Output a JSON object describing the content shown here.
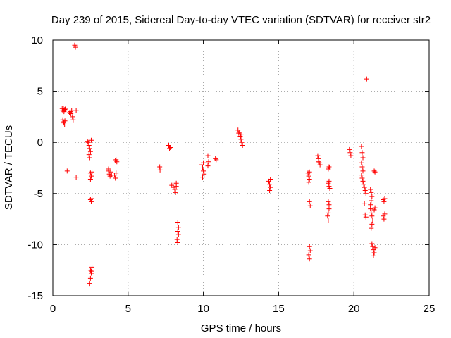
{
  "chart_data": {
    "type": "scatter",
    "title": "Day 239 of 2015, Sidereal Day-to-day VTEC variation (SDTVAR) for receiver str2",
    "xlabel": "GPS time / hours",
    "ylabel": "SDTVAR / TECUs",
    "xlim": [
      0,
      25
    ],
    "ylim": [
      -15,
      10
    ],
    "xticks": [
      0,
      5,
      10,
      15,
      20,
      25
    ],
    "yticks": [
      -15,
      -10,
      -5,
      0,
      5,
      10
    ],
    "xtick_labels": [
      "0",
      "5",
      "10",
      "15",
      "20",
      "25"
    ],
    "ytick_labels": [
      "-15",
      "-10",
      "-5",
      "0",
      "5",
      "10"
    ],
    "grid": true,
    "marker": "plus",
    "color": "#ff0000",
    "series": [
      {
        "name": "SDTVAR",
        "points": [
          [
            0.62,
            3.3
          ],
          [
            0.66,
            3.1
          ],
          [
            0.7,
            3.35
          ],
          [
            0.74,
            3.0
          ],
          [
            0.78,
            3.2
          ],
          [
            0.82,
            3.25
          ],
          [
            0.66,
            2.2
          ],
          [
            0.7,
            2.0
          ],
          [
            0.74,
            1.9
          ],
          [
            0.78,
            1.7
          ],
          [
            0.8,
            2.1
          ],
          [
            1.1,
            2.9
          ],
          [
            1.15,
            3.0
          ],
          [
            1.2,
            2.8
          ],
          [
            1.25,
            3.1
          ],
          [
            1.3,
            2.5
          ],
          [
            1.35,
            2.2
          ],
          [
            1.55,
            3.1
          ],
          [
            1.45,
            9.5
          ],
          [
            1.5,
            9.3
          ],
          [
            0.95,
            -2.8
          ],
          [
            1.55,
            -3.4
          ],
          [
            2.3,
            0.1
          ],
          [
            2.35,
            0.0
          ],
          [
            2.4,
            -0.3
          ],
          [
            2.45,
            -0.6
          ],
          [
            2.5,
            -0.9
          ],
          [
            2.55,
            0.2
          ],
          [
            2.4,
            -1.2
          ],
          [
            2.45,
            -1.5
          ],
          [
            2.5,
            -3.0
          ],
          [
            2.55,
            -3.3
          ],
          [
            2.6,
            -2.9
          ],
          [
            2.5,
            -3.6
          ],
          [
            2.5,
            -5.6
          ],
          [
            2.55,
            -5.8
          ],
          [
            2.6,
            -5.5
          ],
          [
            2.5,
            -12.5
          ],
          [
            2.55,
            -12.8
          ],
          [
            2.6,
            -12.2
          ],
          [
            2.5,
            -13.3
          ],
          [
            2.45,
            -13.8
          ],
          [
            2.55,
            -12.6
          ],
          [
            3.7,
            -2.8
          ],
          [
            3.75,
            -3.1
          ],
          [
            3.8,
            -3.3
          ],
          [
            3.85,
            -2.9
          ],
          [
            3.9,
            -3.2
          ],
          [
            3.7,
            -2.6
          ],
          [
            4.1,
            -3.2
          ],
          [
            4.15,
            -3.5
          ],
          [
            4.2,
            -3.0
          ],
          [
            4.15,
            -1.8
          ],
          [
            4.2,
            -1.7
          ],
          [
            4.25,
            -1.9
          ],
          [
            7.1,
            -2.4
          ],
          [
            7.12,
            -2.7
          ],
          [
            7.7,
            -0.3
          ],
          [
            7.75,
            -0.6
          ],
          [
            7.8,
            -0.5
          ],
          [
            7.9,
            -4.2
          ],
          [
            8.0,
            -4.4
          ],
          [
            8.1,
            -4.6
          ],
          [
            8.2,
            -4.3
          ],
          [
            8.15,
            -4.9
          ],
          [
            8.2,
            -4.0
          ],
          [
            8.3,
            -7.8
          ],
          [
            8.35,
            -8.3
          ],
          [
            8.3,
            -8.7
          ],
          [
            8.35,
            -9.0
          ],
          [
            8.25,
            -9.5
          ],
          [
            8.3,
            -9.8
          ],
          [
            9.9,
            -2.2
          ],
          [
            9.95,
            -2.5
          ],
          [
            10.0,
            -2.8
          ],
          [
            10.05,
            -3.1
          ],
          [
            9.95,
            -3.4
          ],
          [
            10.0,
            -2.0
          ],
          [
            10.3,
            -1.3
          ],
          [
            10.35,
            -1.9
          ],
          [
            10.3,
            -2.3
          ],
          [
            10.8,
            -1.6
          ],
          [
            10.85,
            -1.7
          ],
          [
            12.3,
            1.2
          ],
          [
            12.35,
            0.9
          ],
          [
            12.4,
            1.0
          ],
          [
            12.45,
            0.6
          ],
          [
            12.5,
            0.3
          ],
          [
            12.55,
            0.0
          ],
          [
            12.6,
            -0.3
          ],
          [
            12.5,
            0.8
          ],
          [
            14.35,
            -3.8
          ],
          [
            14.4,
            -4.1
          ],
          [
            14.45,
            -4.4
          ],
          [
            14.4,
            -4.7
          ],
          [
            14.45,
            -3.6
          ],
          [
            16.95,
            -3.0
          ],
          [
            17.0,
            -3.3
          ],
          [
            17.05,
            -3.6
          ],
          [
            17.0,
            -3.9
          ],
          [
            17.05,
            -2.9
          ],
          [
            17.05,
            -5.8
          ],
          [
            17.1,
            -6.2
          ],
          [
            17.05,
            -10.2
          ],
          [
            17.1,
            -10.6
          ],
          [
            17.0,
            -11.0
          ],
          [
            17.05,
            -11.4
          ],
          [
            17.6,
            -1.3
          ],
          [
            17.65,
            -1.6
          ],
          [
            17.7,
            -2.0
          ],
          [
            17.75,
            -2.2
          ],
          [
            17.65,
            -1.9
          ],
          [
            18.3,
            -2.6
          ],
          [
            18.35,
            -2.4
          ],
          [
            18.4,
            -2.5
          ],
          [
            18.3,
            -4.0
          ],
          [
            18.35,
            -4.3
          ],
          [
            18.4,
            -4.5
          ],
          [
            18.35,
            -3.8
          ],
          [
            18.3,
            -5.8
          ],
          [
            18.35,
            -6.1
          ],
          [
            18.35,
            -6.5
          ],
          [
            18.3,
            -6.9
          ],
          [
            18.25,
            -7.2
          ],
          [
            18.3,
            -7.6
          ],
          [
            19.7,
            -0.7
          ],
          [
            19.75,
            -1.0
          ],
          [
            19.8,
            -1.3
          ],
          [
            20.5,
            -0.4
          ],
          [
            20.55,
            -1.0
          ],
          [
            20.6,
            -1.5
          ],
          [
            20.5,
            -2.0
          ],
          [
            20.55,
            -2.4
          ],
          [
            20.6,
            -2.8
          ],
          [
            20.5,
            -3.2
          ],
          [
            20.55,
            -3.5
          ],
          [
            20.6,
            -3.8
          ],
          [
            20.65,
            -4.1
          ],
          [
            20.7,
            -4.4
          ],
          [
            20.75,
            -4.7
          ],
          [
            20.8,
            -5.0
          ],
          [
            20.85,
            6.2
          ],
          [
            20.7,
            -6.0
          ],
          [
            20.75,
            -7.1
          ],
          [
            20.8,
            -7.3
          ],
          [
            21.1,
            -4.6
          ],
          [
            21.15,
            -4.9
          ],
          [
            21.2,
            -5.3
          ],
          [
            21.15,
            -5.7
          ],
          [
            21.1,
            -6.1
          ],
          [
            21.1,
            -6.5
          ],
          [
            21.15,
            -6.9
          ],
          [
            21.2,
            -7.2
          ],
          [
            21.25,
            -7.6
          ],
          [
            21.2,
            -8.0
          ],
          [
            21.15,
            -8.4
          ],
          [
            21.2,
            -9.9
          ],
          [
            21.25,
            -10.2
          ],
          [
            21.3,
            -10.5
          ],
          [
            21.35,
            -10.8
          ],
          [
            21.3,
            -11.1
          ],
          [
            21.4,
            -10.3
          ],
          [
            21.35,
            -2.8
          ],
          [
            21.4,
            -2.9
          ],
          [
            21.35,
            -6.6
          ],
          [
            21.4,
            -6.4
          ],
          [
            21.95,
            -5.6
          ],
          [
            22.0,
            -5.8
          ],
          [
            22.05,
            -5.5
          ],
          [
            21.95,
            -7.2
          ],
          [
            22.0,
            -7.5
          ],
          [
            22.05,
            -7.0
          ]
        ]
      }
    ]
  }
}
